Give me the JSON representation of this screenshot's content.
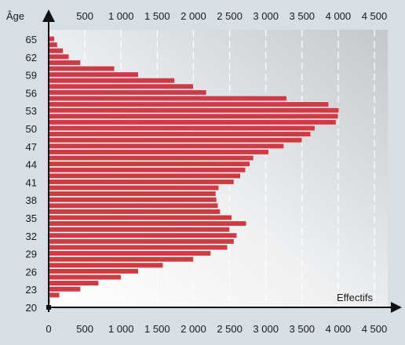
{
  "colors": {
    "page_background": "#d6dfe6",
    "bar": "#cf3b45",
    "bar_edge": "#f5f5f5",
    "axis": "#111111",
    "grid": "#ffffff",
    "plot_background_light": "#ffffff",
    "plot_background_dark": "#c4c8cc"
  },
  "chart_data": {
    "type": "bar",
    "orientation": "horizontal",
    "title": "",
    "xlabel": "Effectifs",
    "ylabel": "Âge",
    "xlim": [
      0,
      4500
    ],
    "ylim": [
      20,
      66
    ],
    "grid": "vertical dashed",
    "x_ticks_top": [
      "500",
      "1 000",
      "1 500",
      "2 000",
      "2 500",
      "3 000",
      "3 500",
      "4 000",
      "4 500"
    ],
    "x_ticks_bottom": [
      "0",
      "500",
      "1 000",
      "1 500",
      "2 000",
      "2 500",
      "3 000",
      "3 500",
      "4 000",
      "4 500"
    ],
    "y_ticks": [
      "20",
      "23",
      "26",
      "29",
      "32",
      "35",
      "38",
      "41",
      "44",
      "47",
      "50",
      "53",
      "56",
      "59",
      "62",
      "65"
    ],
    "ages": [
      21,
      22,
      23,
      24,
      25,
      26,
      27,
      28,
      29,
      30,
      31,
      32,
      33,
      34,
      35,
      36,
      37,
      38,
      39,
      40,
      41,
      42,
      43,
      44,
      45,
      46,
      47,
      48,
      49,
      50,
      51,
      52,
      53,
      54,
      55,
      56,
      57,
      58,
      59,
      60,
      61,
      62,
      63,
      64,
      65
    ],
    "values": [
      20,
      150,
      440,
      690,
      1000,
      1240,
      1580,
      2000,
      2240,
      2470,
      2560,
      2600,
      2500,
      2730,
      2530,
      2370,
      2340,
      2320,
      2310,
      2350,
      2560,
      2650,
      2720,
      2780,
      2830,
      3040,
      3250,
      3500,
      3620,
      3680,
      3970,
      4000,
      4010,
      3870,
      3290,
      2180,
      2000,
      1740,
      1240,
      910,
      440,
      280,
      200,
      120,
      80
    ]
  }
}
